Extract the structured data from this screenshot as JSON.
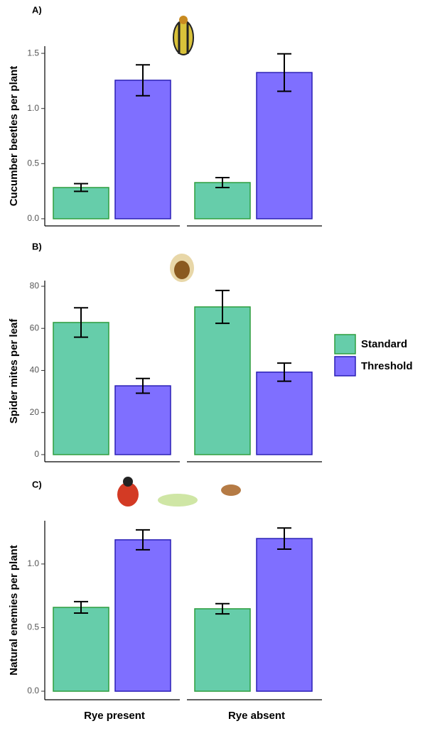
{
  "chart_data": [
    {
      "type": "bar",
      "panel_label": "A)",
      "ylabel": "Cucumber beetles per plant",
      "ylim": [
        -0.065,
        1.565
      ],
      "yticks": [
        {
          "value": 0,
          "label": "0.0"
        },
        0.5,
        {
          "value": 1,
          "label": "1.0"
        },
        1.5
      ],
      "series": [
        {
          "color": "#66cdaa",
          "values": [
            0.283,
            0.328
          ],
          "errors": [
            0.035,
            0.045
          ]
        },
        {
          "color": "#7f6fff",
          "values": [
            1.256,
            1.326
          ],
          "errors": [
            0.14,
            0.17
          ]
        }
      ]
    },
    {
      "type": "bar",
      "panel_label": "B)",
      "ylabel": "Spider mites per leaf",
      "ylim": [
        -3.4,
        82.7
      ],
      "yticks": [
        0,
        20,
        40,
        60,
        80
      ],
      "series": [
        {
          "name": "Standard",
          "color": "#66cdaa",
          "values": [
            62.8,
            70.2
          ],
          "errors": [
            7,
            7.8
          ]
        },
        {
          "name": "Threshold",
          "color": "#7f6fff",
          "values": [
            32.7,
            39.2
          ],
          "errors": [
            3.5,
            4.3
          ]
        }
      ]
    },
    {
      "type": "bar",
      "panel_label": "C)",
      "ylabel": "Natural enemies per plant",
      "categories": [
        "Rye present",
        "Rye absent"
      ],
      "ylim": [
        -0.067,
        1.34
      ],
      "yticks": [
        {
          "value": 0,
          "label": "0.0"
        },
        0.5,
        {
          "value": 1,
          "label": "1.0"
        }
      ],
      "series": [
        {
          "color": "#66cdaa",
          "values": [
            0.659,
            0.648
          ],
          "errors": [
            0.045,
            0.04
          ]
        },
        {
          "color": "#7f6fff",
          "values": [
            1.19,
            1.2
          ],
          "errors": [
            0.078,
            0.083
          ]
        }
      ]
    }
  ]
}
